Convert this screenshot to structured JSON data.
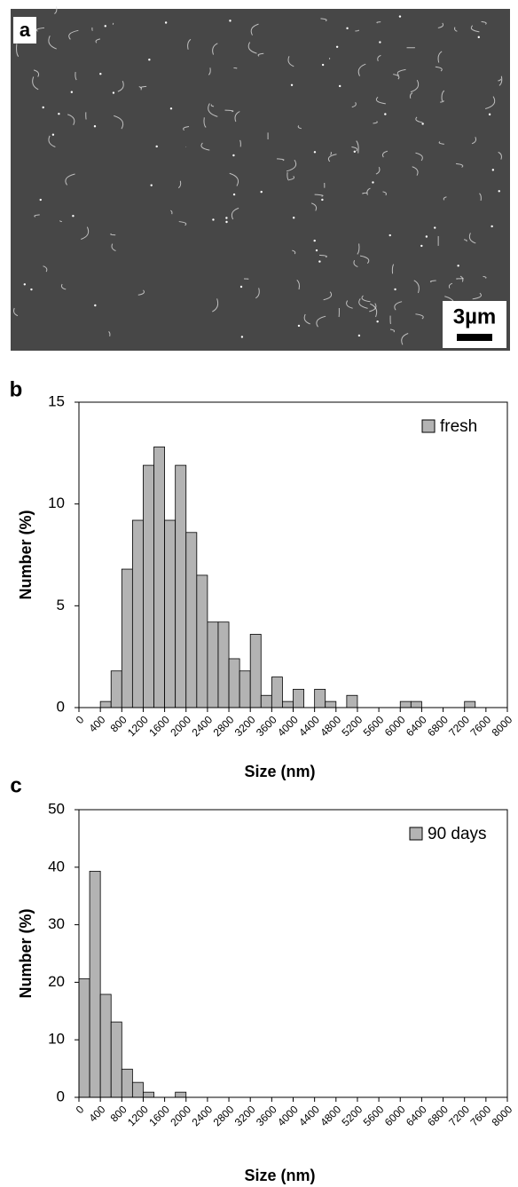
{
  "image_panel": {
    "label": "a",
    "scale_bar": "3µm"
  },
  "chart_data": [
    {
      "type": "histogram",
      "label": "b",
      "xlabel": "Size (nm)",
      "ylabel": "Number (%)",
      "bins": [
        0,
        200,
        400,
        600,
        800,
        1000,
        1200,
        1400,
        1600,
        1800,
        2000,
        2200,
        2400,
        2600,
        2800,
        3000,
        3200,
        3400,
        3600,
        3800,
        4000,
        4200,
        4400,
        4600,
        4800,
        5000,
        5200,
        5400,
        5600,
        5800,
        6000,
        6200,
        6400,
        6600,
        6800,
        7000,
        7200,
        7400,
        7600,
        7800,
        8000
      ],
      "series": [
        {
          "name": "fresh",
          "color": "#b3b3b3",
          "values": [
            0,
            0,
            0.3,
            1.8,
            6.8,
            9.2,
            11.9,
            12.8,
            9.2,
            11.9,
            8.6,
            6.5,
            4.2,
            4.2,
            2.4,
            1.8,
            3.6,
            0.6,
            1.5,
            0.3,
            0.9,
            0,
            0.9,
            0.3,
            0,
            0.6,
            0,
            0,
            0,
            0,
            0.3,
            0.3,
            0,
            0,
            0,
            0,
            0.3,
            0,
            0,
            0
          ]
        }
      ],
      "xlim": [
        0,
        8000
      ],
      "xticks": [
        0,
        400,
        800,
        1200,
        1600,
        2000,
        2400,
        2800,
        3200,
        3600,
        4000,
        4400,
        4800,
        5200,
        5600,
        6000,
        6400,
        6800,
        7200,
        7600,
        8000
      ],
      "ylim": [
        0,
        15
      ],
      "yticks": [
        0,
        5,
        10,
        15
      ],
      "legend": "upper right",
      "grid": false
    },
    {
      "type": "histogram",
      "label": "c",
      "xlabel": "Size (nm)",
      "ylabel": "Number (%)",
      "bins": [
        0,
        200,
        400,
        600,
        800,
        1000,
        1200,
        1400,
        1600,
        1800,
        2000,
        2200,
        2400,
        2600,
        2800,
        3000,
        3200,
        3400,
        3600,
        3800,
        4000,
        4200,
        4400,
        4600,
        4800,
        5000,
        5200,
        5400,
        5600,
        5800,
        6000,
        6200,
        6400,
        6600,
        6800,
        7000,
        7200,
        7400,
        7600,
        7800,
        8000
      ],
      "series": [
        {
          "name": "90 days",
          "color": "#b3b3b3",
          "values": [
            20.6,
            39.3,
            17.9,
            13.1,
            4.9,
            2.6,
            0.9,
            0,
            0,
            0.9,
            0,
            0,
            0,
            0,
            0,
            0,
            0,
            0,
            0,
            0,
            0,
            0,
            0,
            0,
            0,
            0,
            0,
            0,
            0,
            0,
            0,
            0,
            0,
            0,
            0,
            0,
            0,
            0,
            0,
            0
          ]
        }
      ],
      "xlim": [
        0,
        8000
      ],
      "xticks": [
        0,
        400,
        800,
        1200,
        1600,
        2000,
        2400,
        2800,
        3200,
        3600,
        4000,
        4400,
        4800,
        5200,
        5600,
        6000,
        6400,
        6800,
        7200,
        7600,
        8000
      ],
      "ylim": [
        0,
        50
      ],
      "yticks": [
        0,
        10,
        20,
        30,
        40,
        50
      ],
      "legend": "upper right",
      "grid": false
    }
  ]
}
